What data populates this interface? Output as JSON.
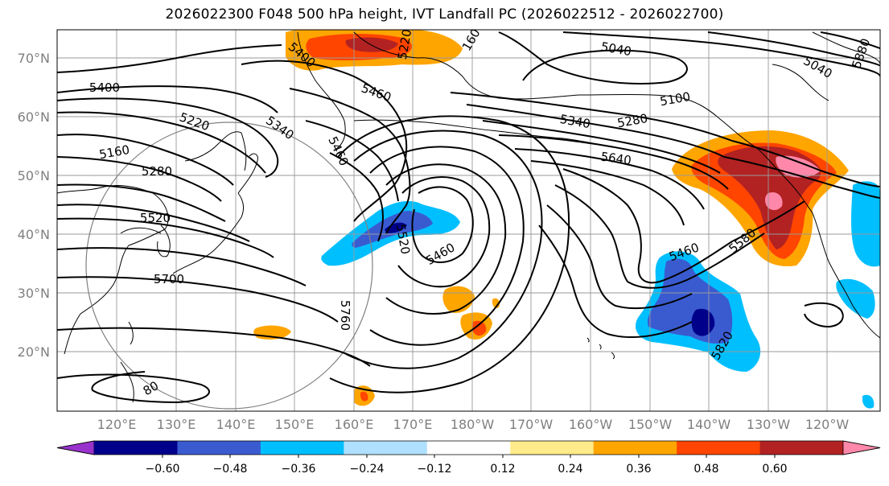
{
  "title": "2026022300 F048 500 hPa height, IVT Landfall PC (2026022512 - 2026022700)",
  "lat_labels": [
    "70°N",
    "60°N",
    "50°N",
    "40°N",
    "30°N",
    "20°N"
  ],
  "lat_values": [
    70,
    60,
    50,
    40,
    30,
    20
  ],
  "lon_labels": [
    "120°E",
    "130°E",
    "140°E",
    "150°E",
    "160°E",
    "170°E",
    "180°W",
    "170°W",
    "160°W",
    "150°W",
    "140°W",
    "130°W",
    "120°W"
  ],
  "lon_values": [
    120,
    130,
    140,
    150,
    160,
    170,
    180,
    190,
    200,
    210,
    220,
    230,
    240
  ],
  "contour_labels": [
    "5400",
    "5220",
    "5160",
    "5280",
    "5520",
    "5700",
    "5340",
    "5460",
    "5400",
    "5460",
    "5220",
    "5040",
    "5040",
    "5100",
    "5340",
    "5280",
    "5640",
    "5520",
    "5460",
    "5760",
    "5460",
    "5580",
    "5820",
    "5880",
    "160",
    "80"
  ],
  "colorbar": {
    "ticks": [
      "−0.60",
      "−0.48",
      "−0.36",
      "−0.24",
      "−0.12",
      "0.12",
      "0.24",
      "0.36",
      "0.48",
      "0.60"
    ],
    "colors": [
      "#9932cc",
      "#00008b",
      "#3a5bd0",
      "#00bfff",
      "#b0e0ff",
      "#ffffff",
      "#ffeb8a",
      "#ffa500",
      "#ff4500",
      "#b22222",
      "#ff88aa"
    ]
  },
  "chart_data": {
    "type": "map",
    "title": "2026022300 F048 500 hPa height, IVT Landfall PC (2026022512 - 2026022700)",
    "lat_range": [
      10,
      75
    ],
    "lon_range": [
      110,
      245
    ],
    "contour_variable": "500 hPa geopotential height (m)",
    "contour_levels": [
      5040,
      5100,
      5160,
      5220,
      5280,
      5340,
      5400,
      5460,
      5520,
      5580,
      5640,
      5700,
      5760,
      5820,
      5880
    ],
    "shading_variable": "IVT Landfall PC",
    "colorbar_ticks": [
      -0.6,
      -0.48,
      -0.36,
      -0.24,
      -0.12,
      0.12,
      0.24,
      0.36,
      0.48,
      0.6
    ]
  }
}
